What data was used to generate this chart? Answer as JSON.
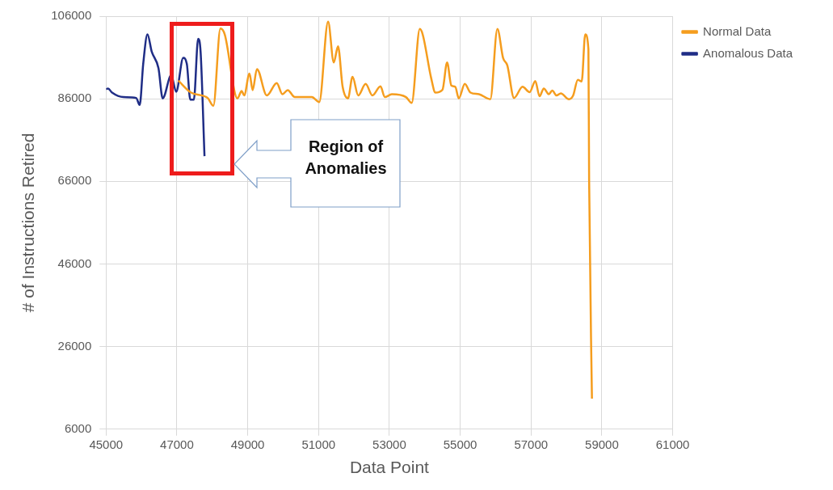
{
  "chart_data": {
    "type": "line",
    "xlabel": "Data Point",
    "ylabel": "# of Instructions Retired",
    "xlim": [
      45000,
      61000
    ],
    "xticks": [
      45000,
      47000,
      49000,
      51000,
      53000,
      55000,
      57000,
      59000,
      61000
    ],
    "ylim": [
      6000,
      106000
    ],
    "yticks": [
      6000,
      26000,
      46000,
      66000,
      86000,
      106000
    ],
    "grid": true,
    "legend": "right",
    "marker": "none",
    "line_style": "solid",
    "annotations": [
      "Region of Anomalies"
    ],
    "series": [
      {
        "name": "Normal Data",
        "color": "#f59d1e",
        "x": [
          47040,
          47400,
          47870,
          48030,
          48230,
          48350,
          48710,
          48830,
          48900,
          49050,
          49140,
          49260,
          49540,
          49820,
          49980,
          50130,
          50330,
          50810,
          51020,
          51270,
          51430,
          51550,
          51680,
          51830,
          51960,
          52120,
          52330,
          52520,
          52750,
          52870,
          53070,
          53470,
          53630,
          53860,
          53940,
          54180,
          54300,
          54500,
          54630,
          54750,
          54860,
          54960,
          55130,
          55290,
          55530,
          55850,
          56050,
          56210,
          56330,
          56520,
          56760,
          56960,
          57120,
          57240,
          57360,
          57500,
          57600,
          57720,
          57840,
          58070,
          58190,
          58320,
          58430,
          58530,
          58620,
          58640,
          58720
        ],
        "values": [
          90400,
          87500,
          86200,
          84300,
          103000,
          101600,
          86100,
          87900,
          86800,
          92100,
          88100,
          93200,
          86800,
          89800,
          87100,
          88100,
          86400,
          86400,
          85200,
          104700,
          94800,
          98700,
          88900,
          86100,
          91300,
          86800,
          89600,
          86800,
          89000,
          86400,
          87100,
          86400,
          85000,
          102900,
          101600,
          91000,
          87500,
          88200,
          94800,
          89200,
          88900,
          86100,
          89600,
          87500,
          87100,
          85900,
          102900,
          95900,
          94100,
          86200,
          88900,
          87600,
          90300,
          86600,
          88500,
          87100,
          88000,
          86800,
          87300,
          85900,
          86800,
          90600,
          90200,
          101600,
          98000,
          66400,
          13400
        ]
      },
      {
        "name": "Anomalous Data",
        "color": "#1f2d86",
        "x": [
          45000,
          45055,
          45170,
          45490,
          45850,
          45950,
          46050,
          46170,
          46290,
          46480,
          46600,
          46840,
          46980,
          47180,
          47280,
          47380,
          47480,
          47600,
          47670,
          47780
        ],
        "values": [
          88300,
          88500,
          87500,
          86400,
          86200,
          84500,
          94500,
          101600,
          97400,
          93400,
          86100,
          91700,
          87700,
          95900,
          94500,
          85800,
          85800,
          100500,
          97300,
          72100
        ]
      }
    ]
  }
}
